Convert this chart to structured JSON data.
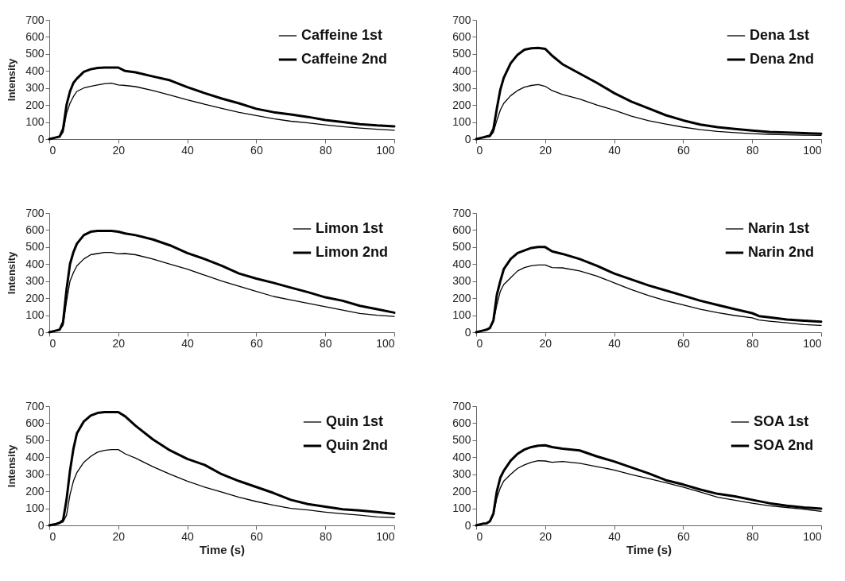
{
  "chart_data": [
    {
      "type": "line",
      "ylabel": "Intensity",
      "xlim": [
        0,
        100
      ],
      "xticks": [
        0,
        20,
        40,
        60,
        80,
        100
      ],
      "ylim": [
        0,
        700
      ],
      "yticks": [
        0,
        100,
        200,
        300,
        400,
        500,
        600,
        700
      ],
      "legend": "top right",
      "grid": false,
      "x": [
        0,
        2,
        3,
        4,
        5,
        6,
        7,
        8,
        10,
        12,
        14,
        16,
        18,
        20,
        22,
        25,
        30,
        35,
        40,
        45,
        50,
        55,
        60,
        65,
        70,
        75,
        80,
        85,
        90,
        95,
        100
      ],
      "series": [
        {
          "name": "Caffeine 1st",
          "color": "#000000",
          "values": [
            0,
            10,
            12,
            40,
            150,
            210,
            250,
            280,
            300,
            310,
            318,
            325,
            328,
            318,
            315,
            308,
            285,
            258,
            230,
            205,
            180,
            157,
            138,
            120,
            105,
            95,
            83,
            73,
            65,
            58,
            52
          ]
        },
        {
          "name": "Caffeine 2nd",
          "color": "#000000",
          "values": [
            0,
            10,
            15,
            60,
            200,
            280,
            330,
            355,
            395,
            410,
            418,
            420,
            420,
            420,
            400,
            392,
            368,
            345,
            305,
            270,
            238,
            210,
            178,
            158,
            145,
            130,
            112,
            100,
            88,
            80,
            75
          ]
        }
      ]
    },
    {
      "type": "line",
      "xlim": [
        0,
        100
      ],
      "xticks": [
        0,
        20,
        40,
        60,
        80,
        100
      ],
      "ylim": [
        0,
        700
      ],
      "yticks": [
        0,
        100,
        200,
        300,
        400,
        500,
        600,
        700
      ],
      "legend": "top right",
      "grid": false,
      "x": [
        0,
        2,
        3,
        4,
        5,
        6,
        7,
        8,
        10,
        12,
        14,
        16,
        18,
        20,
        22,
        25,
        30,
        35,
        40,
        45,
        50,
        55,
        60,
        65,
        70,
        75,
        80,
        85,
        90,
        95,
        100
      ],
      "series": [
        {
          "name": "Dena 1st",
          "color": "#000000",
          "values": [
            0,
            10,
            12,
            15,
            40,
            110,
            170,
            210,
            255,
            285,
            305,
            315,
            320,
            310,
            285,
            262,
            235,
            200,
            170,
            135,
            108,
            88,
            70,
            55,
            45,
            38,
            32,
            28,
            25,
            23,
            22
          ]
        },
        {
          "name": "Dena 2nd",
          "color": "#000000",
          "values": [
            0,
            10,
            15,
            20,
            60,
            180,
            290,
            360,
            445,
            495,
            525,
            533,
            535,
            530,
            490,
            440,
            385,
            330,
            270,
            220,
            180,
            140,
            110,
            85,
            70,
            60,
            50,
            42,
            38,
            35,
            32
          ]
        }
      ]
    },
    {
      "type": "line",
      "ylabel": "Intensity",
      "xlim": [
        0,
        100
      ],
      "xticks": [
        0,
        20,
        40,
        60,
        80,
        100
      ],
      "ylim": [
        0,
        700
      ],
      "yticks": [
        0,
        100,
        200,
        300,
        400,
        500,
        600,
        700
      ],
      "legend": "top right",
      "grid": false,
      "x": [
        0,
        2,
        3,
        4,
        5,
        6,
        7,
        8,
        10,
        12,
        14,
        16,
        18,
        20,
        22,
        25,
        30,
        35,
        40,
        45,
        50,
        55,
        60,
        65,
        70,
        75,
        80,
        85,
        90,
        95,
        100
      ],
      "series": [
        {
          "name": "Limon 1st",
          "color": "#000000",
          "values": [
            0,
            10,
            15,
            40,
            180,
            300,
            350,
            390,
            430,
            455,
            462,
            468,
            468,
            460,
            462,
            455,
            430,
            400,
            370,
            335,
            300,
            270,
            240,
            210,
            190,
            170,
            150,
            130,
            110,
            100,
            93
          ]
        },
        {
          "name": "Limon 2nd",
          "color": "#000000",
          "values": [
            0,
            10,
            15,
            60,
            250,
            400,
            470,
            520,
            570,
            590,
            595,
            595,
            595,
            590,
            580,
            570,
            545,
            510,
            465,
            430,
            390,
            345,
            315,
            290,
            262,
            235,
            205,
            185,
            155,
            135,
            115
          ]
        }
      ]
    },
    {
      "type": "line",
      "xlim": [
        0,
        100
      ],
      "xticks": [
        0,
        20,
        40,
        60,
        80,
        100
      ],
      "ylim": [
        0,
        700
      ],
      "yticks": [
        0,
        100,
        200,
        300,
        400,
        500,
        600,
        700
      ],
      "legend": "top right",
      "grid": false,
      "x": [
        0,
        2,
        3,
        4,
        5,
        6,
        7,
        8,
        10,
        12,
        14,
        16,
        18,
        20,
        22,
        25,
        30,
        35,
        40,
        45,
        50,
        55,
        60,
        65,
        70,
        75,
        80,
        82,
        85,
        90,
        95,
        100
      ],
      "series": [
        {
          "name": "Narin 1st",
          "color": "#000000",
          "values": [
            0,
            10,
            15,
            25,
            60,
            160,
            240,
            280,
            320,
            360,
            380,
            390,
            395,
            395,
            380,
            378,
            360,
            330,
            290,
            250,
            215,
            185,
            160,
            135,
            115,
            98,
            85,
            72,
            65,
            55,
            45,
            40
          ]
        },
        {
          "name": "Narin 2nd",
          "color": "#000000",
          "values": [
            0,
            10,
            15,
            25,
            70,
            220,
            300,
            370,
            430,
            465,
            480,
            495,
            500,
            500,
            475,
            460,
            430,
            390,
            345,
            310,
            275,
            245,
            215,
            185,
            160,
            135,
            112,
            95,
            88,
            75,
            68,
            62
          ]
        }
      ]
    },
    {
      "type": "line",
      "xlabel": "Time (s)",
      "ylabel": "Intensity",
      "xlim": [
        0,
        100
      ],
      "xticks": [
        0,
        20,
        40,
        60,
        80,
        100
      ],
      "ylim": [
        0,
        700
      ],
      "yticks": [
        0,
        100,
        200,
        300,
        400,
        500,
        600,
        700
      ],
      "legend": "top right",
      "grid": false,
      "x": [
        0,
        2,
        3,
        4,
        5,
        6,
        7,
        8,
        10,
        12,
        14,
        16,
        18,
        20,
        22,
        25,
        30,
        35,
        40,
        45,
        50,
        55,
        60,
        65,
        70,
        75,
        80,
        85,
        90,
        95,
        100
      ],
      "series": [
        {
          "name": "Quin 1st",
          "color": "#000000",
          "values": [
            0,
            8,
            12,
            20,
            60,
            180,
            260,
            310,
            370,
            405,
            430,
            440,
            445,
            445,
            420,
            395,
            345,
            300,
            260,
            225,
            195,
            165,
            140,
            118,
            100,
            90,
            78,
            68,
            60,
            50,
            45
          ]
        },
        {
          "name": "Quin 2nd",
          "color": "#000000",
          "values": [
            0,
            8,
            15,
            30,
            150,
            320,
            450,
            540,
            610,
            645,
            660,
            665,
            665,
            665,
            640,
            585,
            505,
            440,
            390,
            355,
            300,
            260,
            225,
            190,
            150,
            125,
            110,
            95,
            88,
            78,
            68
          ]
        }
      ]
    },
    {
      "type": "line",
      "xlabel": "Time (s)",
      "xlim": [
        0,
        100
      ],
      "xticks": [
        0,
        20,
        40,
        60,
        80,
        100
      ],
      "ylim": [
        0,
        700
      ],
      "yticks": [
        0,
        100,
        200,
        300,
        400,
        500,
        600,
        700
      ],
      "legend": "top right",
      "grid": false,
      "x": [
        0,
        2,
        3,
        4,
        5,
        6,
        7,
        8,
        10,
        12,
        14,
        16,
        18,
        20,
        22,
        25,
        30,
        35,
        40,
        45,
        50,
        55,
        60,
        65,
        70,
        75,
        80,
        85,
        90,
        95,
        100
      ],
      "series": [
        {
          "name": "SOA 1st",
          "color": "#000000",
          "values": [
            0,
            10,
            12,
            20,
            60,
            160,
            220,
            260,
            300,
            335,
            355,
            370,
            380,
            378,
            370,
            375,
            365,
            345,
            325,
            298,
            275,
            250,
            225,
            195,
            165,
            148,
            130,
            115,
            105,
            95,
            82
          ]
        },
        {
          "name": "SOA 2nd",
          "color": "#000000",
          "values": [
            0,
            10,
            12,
            25,
            70,
            200,
            280,
            320,
            380,
            420,
            445,
            460,
            468,
            470,
            460,
            450,
            440,
            405,
            375,
            340,
            305,
            265,
            240,
            210,
            185,
            170,
            150,
            130,
            115,
            105,
            98
          ]
        }
      ]
    }
  ]
}
